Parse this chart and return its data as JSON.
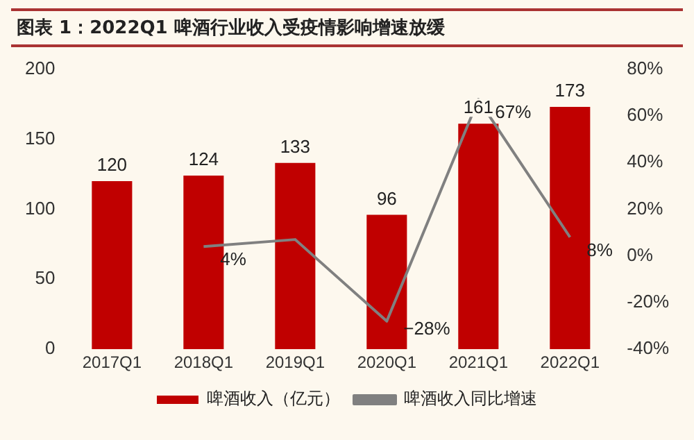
{
  "chart_data": {
    "type": "bar",
    "title": "图表 1：2022Q1 啤酒行业收入受疫情影响增速放缓",
    "categories": [
      "2017Q1",
      "2018Q1",
      "2019Q1",
      "2020Q1",
      "2021Q1",
      "2022Q1"
    ],
    "series": [
      {
        "name": "啤酒收入（亿元）",
        "color": "#c00000",
        "values": [
          120,
          124,
          133,
          96,
          161,
          173
        ]
      },
      {
        "name": "啤酒收入同比增速",
        "type": "line",
        "axis": "y2",
        "color": "#808080",
        "values": [
          null,
          4,
          7,
          -28,
          67,
          8
        ],
        "value_labels": [
          null,
          "4%",
          null,
          "−28%",
          "67%",
          "8%"
        ]
      }
    ],
    "data_labels": true,
    "ylim": [
      0,
      200
    ],
    "yticks": [
      0,
      50,
      100,
      150,
      200
    ],
    "y2lim": [
      -40,
      80
    ],
    "y2ticks": [
      {
        "value": -40,
        "label": "-40%"
      },
      {
        "value": -20,
        "label": "-20%"
      },
      {
        "value": 0,
        "label": "0%"
      },
      {
        "value": 20,
        "label": "20%"
      },
      {
        "value": 40,
        "label": "40%"
      },
      {
        "value": 60,
        "label": "60%"
      },
      {
        "value": 80,
        "label": "80%"
      }
    ],
    "grid": false,
    "legend": "bottom",
    "marker": "none",
    "line_style": "solid"
  }
}
